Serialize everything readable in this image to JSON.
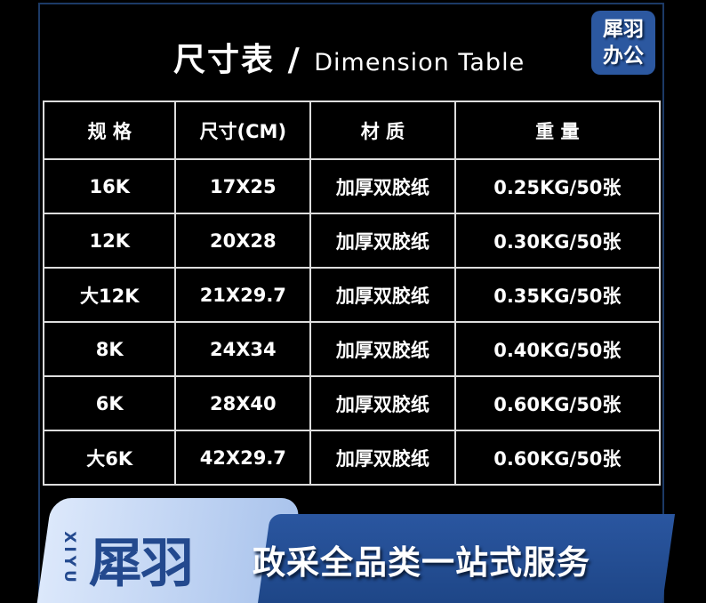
{
  "title": {
    "cn": "尺寸表",
    "sep": "/",
    "en": "Dimension Table"
  },
  "badge": {
    "line1": "犀羽",
    "line2": "办公"
  },
  "table": {
    "headers": [
      "规 格",
      "尺寸(CM)",
      "材 质",
      "重 量"
    ],
    "rows": [
      [
        "16K",
        "17X25",
        "加厚双胶纸",
        "0.25KG/50张"
      ],
      [
        "12K",
        "20X28",
        "加厚双胶纸",
        "0.30KG/50张"
      ],
      [
        "大12K",
        "21X29.7",
        "加厚双胶纸",
        "0.35KG/50张"
      ],
      [
        "8K",
        "24X34",
        "加厚双胶纸",
        "0.40KG/50张"
      ],
      [
        "6K",
        "28X40",
        "加厚双胶纸",
        "0.60KG/50张"
      ],
      [
        "大6K",
        "42X29.7",
        "加厚双胶纸",
        "0.60KG/50张"
      ]
    ]
  },
  "banner": {
    "brand": "犀羽",
    "brand_en": "XIYU",
    "slogan": "政采全品类一站式服务"
  },
  "colors": {
    "accent": "#2c58a0",
    "frame": "#1c3a66"
  }
}
